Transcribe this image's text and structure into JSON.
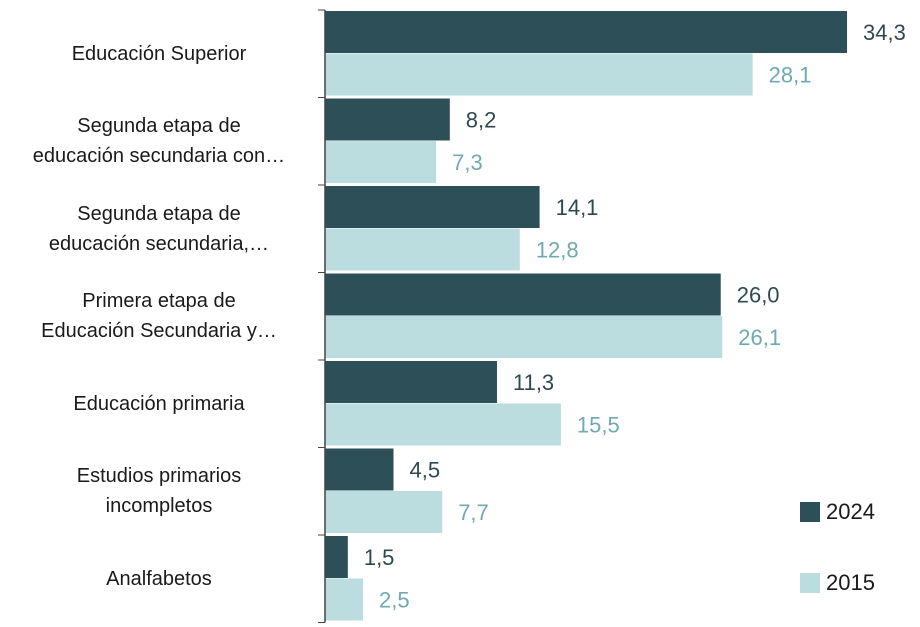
{
  "chart_data": {
    "type": "bar",
    "orientation": "horizontal",
    "categories": [
      "Educación Superior",
      "Segunda etapa de\neducación secundaria con…",
      "Segunda etapa de\neducación secundaria,…",
      "Primera etapa de\nEducación Secundaria y…",
      "Educación primaria",
      "Estudios primarios\nincompletos",
      "Analfabetos"
    ],
    "series": [
      {
        "name": "2024",
        "color": "#2d5058",
        "label_color": "#2d4a52",
        "values": [
          34.3,
          8.2,
          14.1,
          26.0,
          11.3,
          4.5,
          1.5
        ],
        "value_labels": [
          "34,3",
          "8,2",
          "14,1",
          "26,0",
          "11,3",
          "4,5",
          "1,5"
        ]
      },
      {
        "name": "2015",
        "color": "#bcdde0",
        "label_color": "#6fa9b2",
        "values": [
          28.1,
          7.3,
          12.8,
          26.1,
          15.5,
          7.7,
          2.5
        ],
        "value_labels": [
          "28,1",
          "7,3",
          "12,8",
          "26,1",
          "15,5",
          "7,7",
          "2,5"
        ]
      }
    ],
    "legend": "lower right"
  }
}
